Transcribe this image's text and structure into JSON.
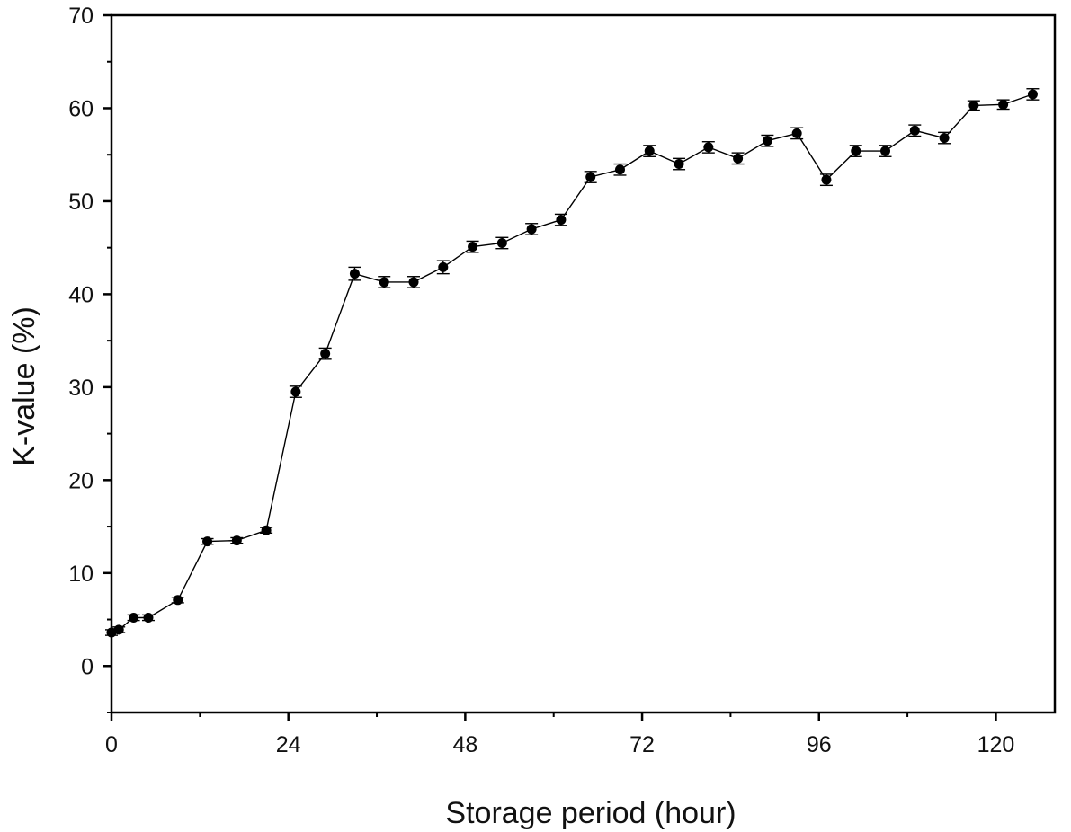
{
  "chart_data": {
    "type": "line",
    "title": "",
    "xlabel": "Storage period (hour)",
    "ylabel": "K-value (%)",
    "xlim": [
      0,
      128
    ],
    "ylim": [
      -5,
      70
    ],
    "x_ticks": [
      0,
      24,
      48,
      72,
      96,
      120
    ],
    "y_ticks": [
      0,
      10,
      20,
      30,
      40,
      50,
      60,
      70
    ],
    "grid": false,
    "legend": "none",
    "error_bars": true,
    "series": [
      {
        "marker": "circle",
        "color": "#000000",
        "points": [
          {
            "x": 0,
            "y": 3.6,
            "err": 0.3
          },
          {
            "x": 1,
            "y": 3.9,
            "err": 0.3
          },
          {
            "x": 3,
            "y": 5.2,
            "err": 0.3
          },
          {
            "x": 5,
            "y": 5.2,
            "err": 0.3
          },
          {
            "x": 9,
            "y": 7.1,
            "err": 0.3
          },
          {
            "x": 13,
            "y": 13.4,
            "err": 0.3
          },
          {
            "x": 17,
            "y": 13.5,
            "err": 0.3
          },
          {
            "x": 21,
            "y": 14.6,
            "err": 0.3
          },
          {
            "x": 25,
            "y": 29.5,
            "err": 0.6
          },
          {
            "x": 29,
            "y": 33.6,
            "err": 0.6
          },
          {
            "x": 33,
            "y": 42.2,
            "err": 0.7
          },
          {
            "x": 37,
            "y": 41.3,
            "err": 0.6
          },
          {
            "x": 41,
            "y": 41.3,
            "err": 0.6
          },
          {
            "x": 45,
            "y": 42.9,
            "err": 0.7
          },
          {
            "x": 49,
            "y": 45.1,
            "err": 0.6
          },
          {
            "x": 53,
            "y": 45.5,
            "err": 0.6
          },
          {
            "x": 57,
            "y": 47.0,
            "err": 0.6
          },
          {
            "x": 61,
            "y": 48.0,
            "err": 0.6
          },
          {
            "x": 65,
            "y": 52.6,
            "err": 0.6
          },
          {
            "x": 69,
            "y": 53.4,
            "err": 0.6
          },
          {
            "x": 73,
            "y": 55.4,
            "err": 0.6
          },
          {
            "x": 77,
            "y": 54.0,
            "err": 0.6
          },
          {
            "x": 81,
            "y": 55.8,
            "err": 0.6
          },
          {
            "x": 85,
            "y": 54.6,
            "err": 0.6
          },
          {
            "x": 89,
            "y": 56.5,
            "err": 0.6
          },
          {
            "x": 93,
            "y": 57.3,
            "err": 0.6
          },
          {
            "x": 97,
            "y": 52.3,
            "err": 0.6
          },
          {
            "x": 101,
            "y": 55.4,
            "err": 0.6
          },
          {
            "x": 105,
            "y": 55.4,
            "err": 0.6
          },
          {
            "x": 109,
            "y": 57.6,
            "err": 0.6
          },
          {
            "x": 113,
            "y": 56.8,
            "err": 0.6
          },
          {
            "x": 117,
            "y": 60.3,
            "err": 0.5
          },
          {
            "x": 121,
            "y": 60.4,
            "err": 0.5
          },
          {
            "x": 125,
            "y": 61.5,
            "err": 0.6
          }
        ]
      }
    ]
  }
}
